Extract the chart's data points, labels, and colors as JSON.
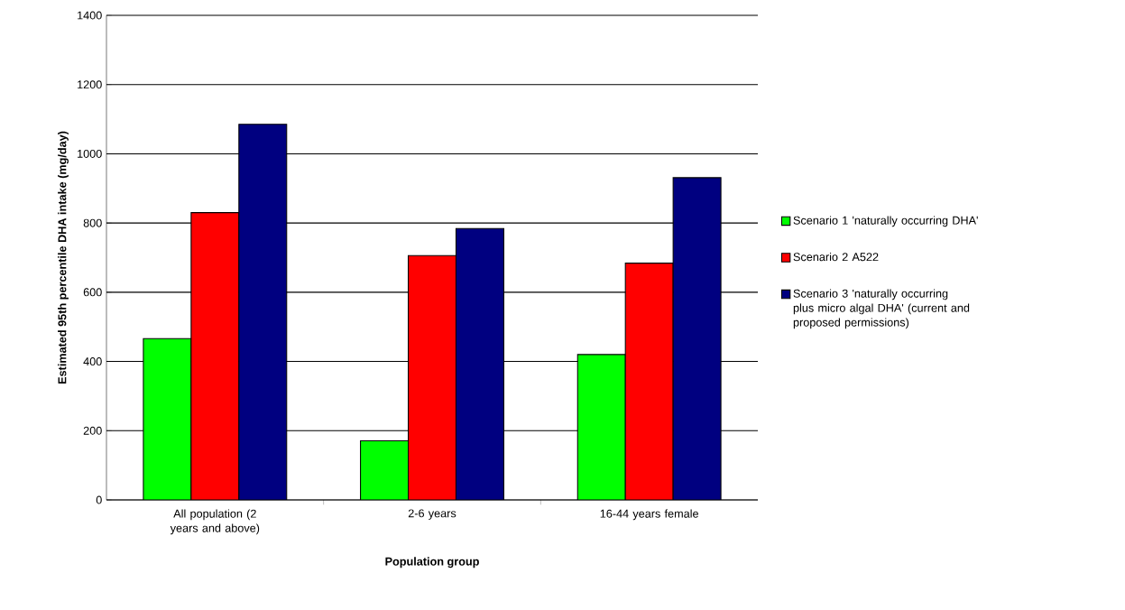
{
  "chart_data": {
    "type": "bar",
    "xlabel": "Population group",
    "ylabel": "Estimated 95th percentile DHA intake (mg/day)",
    "categories": [
      "All population (2 years and above)",
      "2-6 years",
      "16-44 years female"
    ],
    "series": [
      {
        "name": "Scenario 1 'naturally occurring DHA'",
        "color": "#00ff00",
        "values": [
          466,
          171,
          420
        ]
      },
      {
        "name": "Scenario 2 A522",
        "color": "#ff0000",
        "values": [
          830,
          706,
          684
        ]
      },
      {
        "name": "Scenario 3 'naturally occurring plus micro algal DHA'  (current and proposed permissions)",
        "color": "#000080",
        "values": [
          1085,
          784,
          931
        ]
      }
    ],
    "ylim": [
      0,
      1400
    ],
    "yticks": [
      0,
      200,
      400,
      600,
      800,
      1000,
      1200,
      1400
    ],
    "grid": "y",
    "legend": "right"
  }
}
